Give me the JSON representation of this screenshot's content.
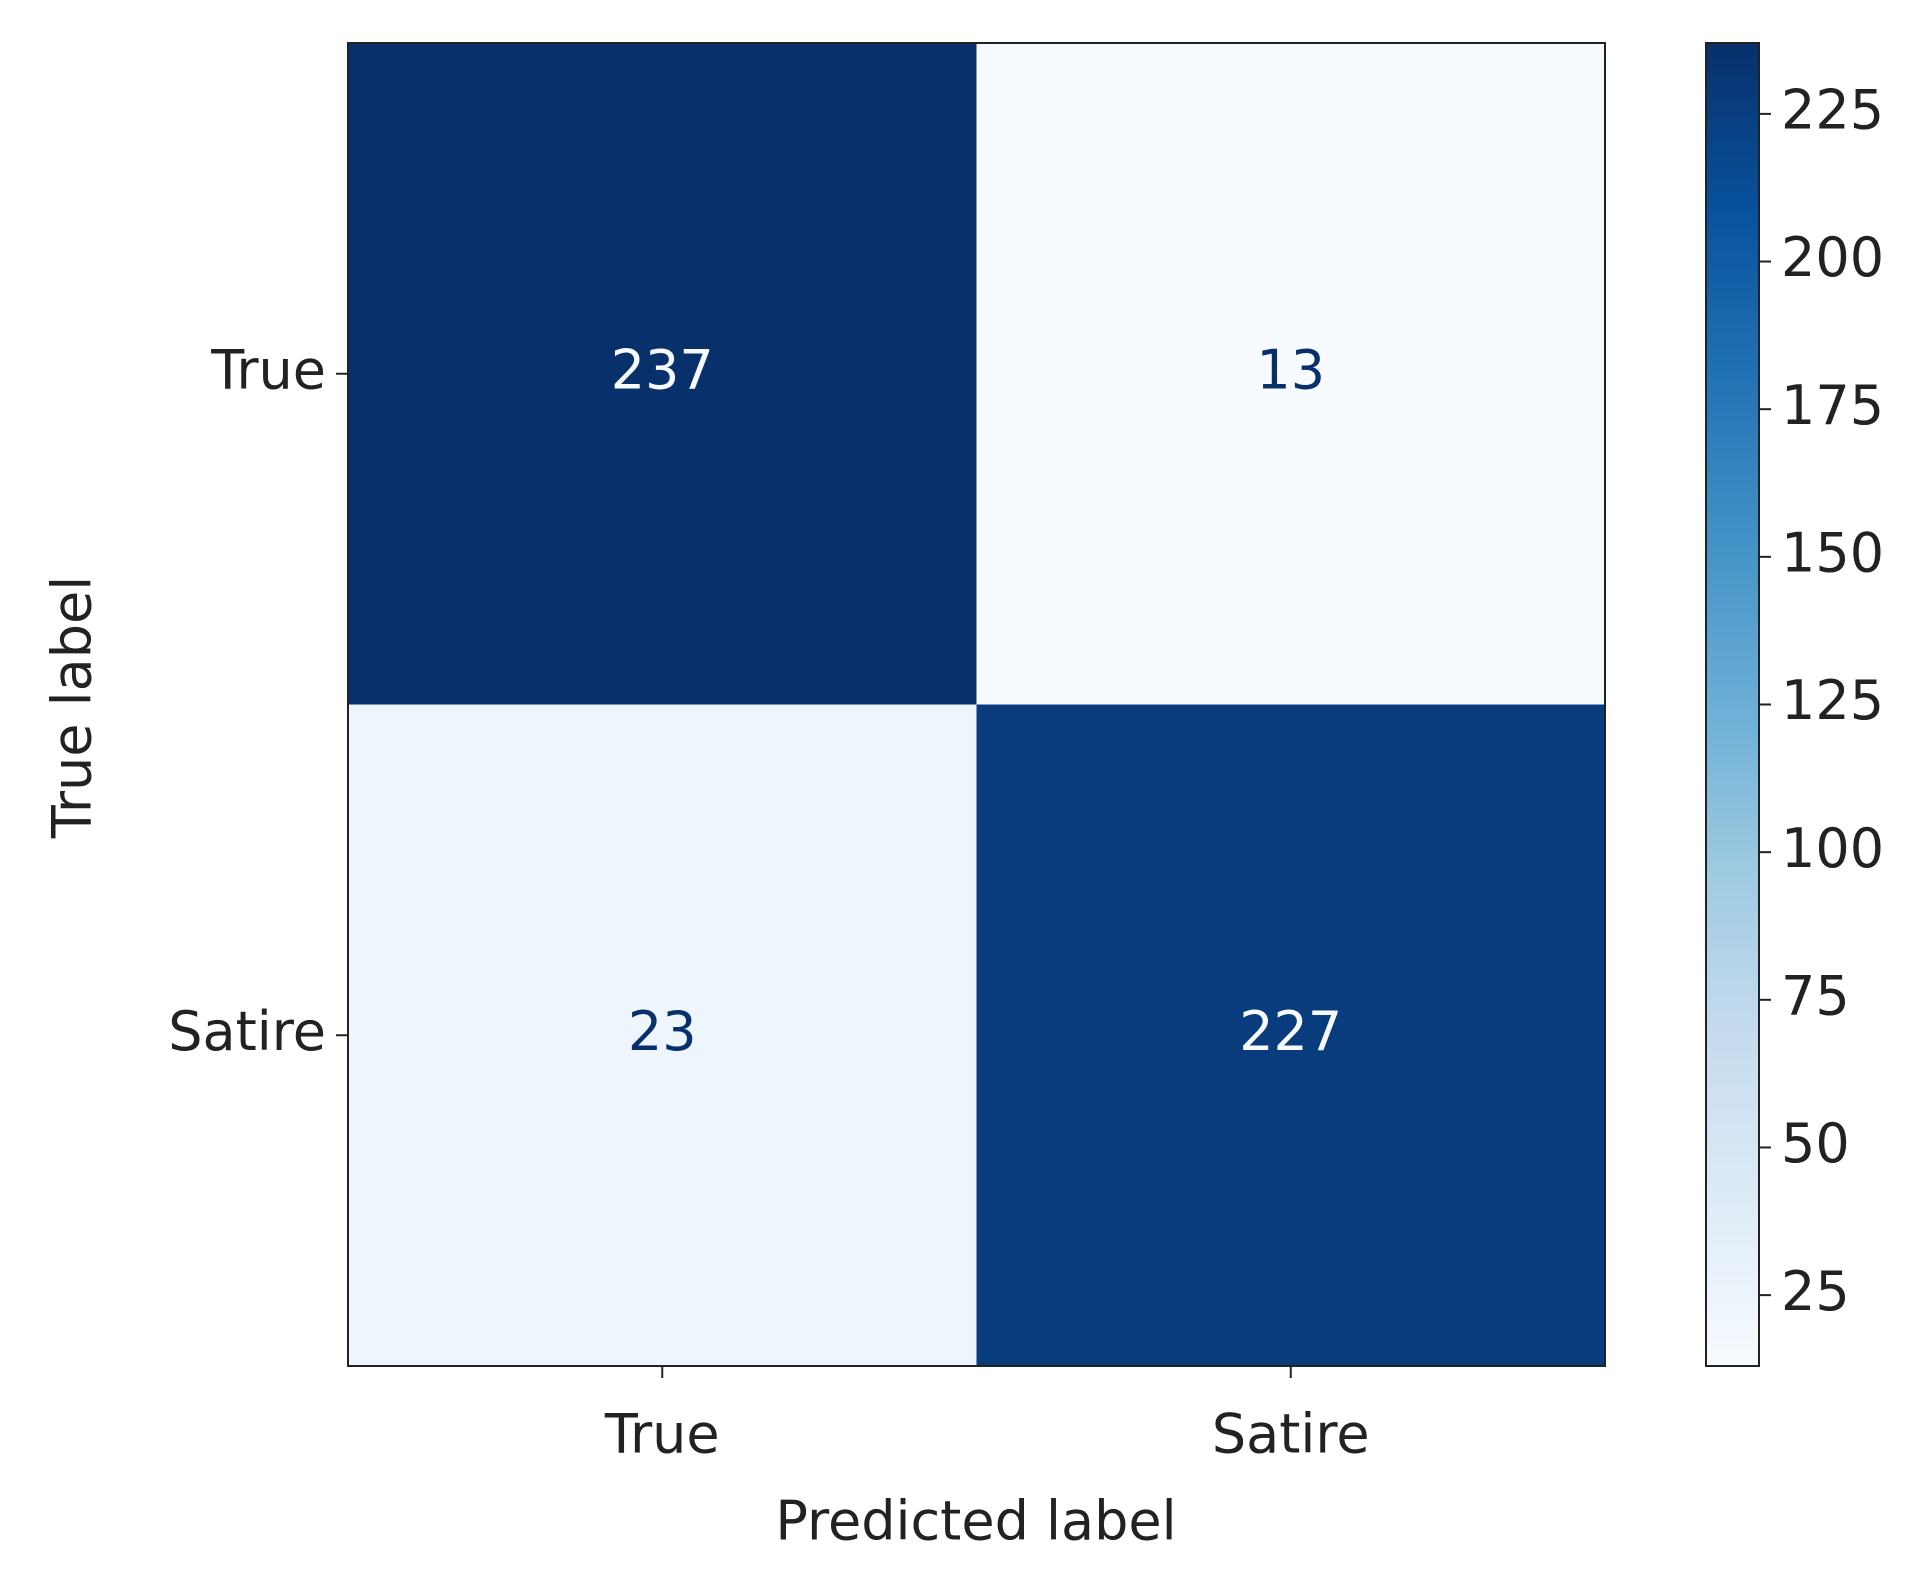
{
  "chart_data": {
    "type": "heatmap",
    "x_categories": [
      "True",
      "Satire"
    ],
    "y_categories": [
      "True",
      "Satire"
    ],
    "values": [
      [
        237,
        13
      ],
      [
        23,
        227
      ]
    ],
    "xlabel": "Predicted label",
    "ylabel": "True label",
    "colormap": "Blues",
    "clim": [
      13,
      237
    ],
    "cticks": [
      25,
      50,
      75,
      100,
      125,
      150,
      175,
      200,
      225
    ]
  }
}
